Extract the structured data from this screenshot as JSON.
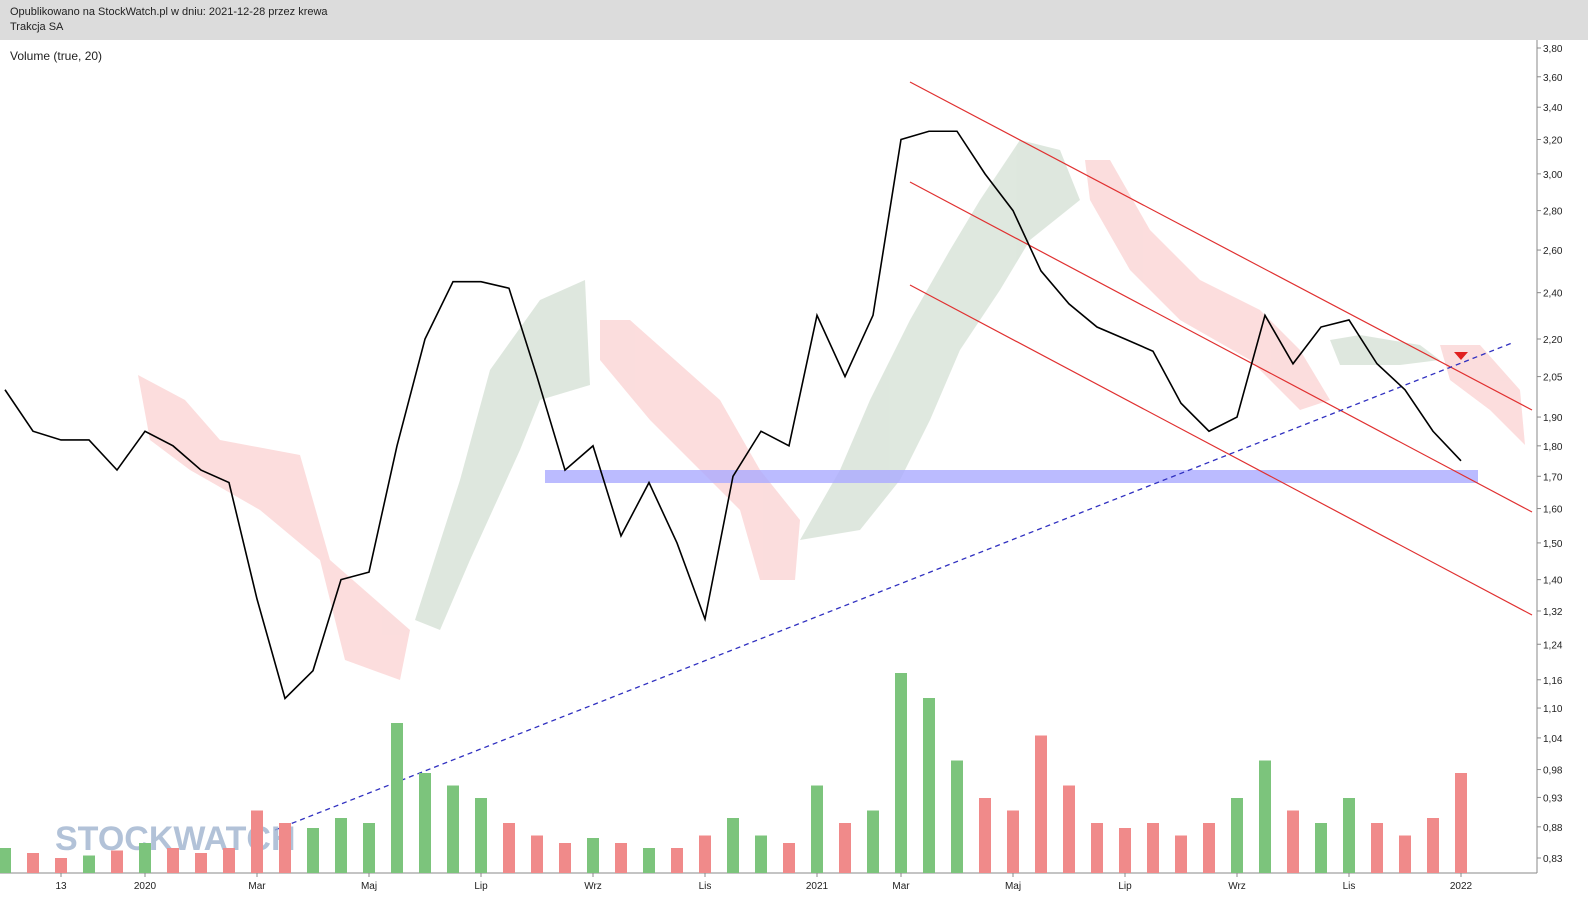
{
  "chart_data": {
    "type": "line",
    "title": "Opublikowano na StockWatch.pl w dniu: 2021-12-28 przez krewa",
    "subtitle": "Trakcja SA",
    "watermark": "STOCKWATCH",
    "categories": [
      null,
      null,
      "13",
      null,
      null,
      "2020",
      null,
      null,
      null,
      "Mar",
      null,
      null,
      null,
      "Maj",
      null,
      null,
      null,
      "Lip",
      null,
      null,
      null,
      "Wrz",
      null,
      null,
      null,
      "Lis",
      null,
      null,
      null,
      "2021",
      null,
      null,
      "Mar",
      null,
      null,
      null,
      "Maj",
      null,
      null,
      null,
      "Lip",
      null,
      null,
      null,
      "Wrz",
      null,
      null,
      null,
      "Lis",
      null,
      null,
      null,
      "2022"
    ],
    "series": [
      {
        "color": "#000000",
        "values": [
          2.0,
          1.85,
          1.82,
          1.82,
          1.72,
          1.85,
          1.8,
          1.72,
          1.68,
          1.35,
          1.12,
          1.18,
          1.4,
          1.42,
          1.8,
          2.2,
          2.45,
          2.45,
          2.42,
          2.05,
          1.72,
          1.8,
          1.52,
          1.68,
          1.5,
          1.3,
          1.7,
          1.85,
          1.8,
          2.3,
          2.05,
          2.3,
          3.2,
          3.25,
          3.25,
          3.0,
          2.8,
          2.5,
          2.35,
          2.25,
          2.2,
          2.15,
          1.95,
          1.85,
          1.9,
          2.3,
          2.1,
          2.25,
          2.28,
          2.1,
          2.0,
          1.85,
          1.75
        ]
      }
    ],
    "volume": {
      "name": "Volume (true, 20)",
      "up_color": "#7cc47c",
      "down_color": "#f08a8a",
      "values": [
        10,
        8,
        6,
        7,
        9,
        12,
        10,
        8,
        10,
        25,
        20,
        18,
        22,
        20,
        60,
        40,
        35,
        30,
        20,
        15,
        12,
        14,
        12,
        10,
        10,
        15,
        22,
        15,
        12,
        35,
        20,
        25,
        80,
        70,
        45,
        30,
        25,
        55,
        35,
        20,
        18,
        20,
        15,
        20,
        30,
        45,
        25,
        20,
        30,
        20,
        15,
        22,
        40
      ]
    },
    "log_scale": true,
    "ylim": [
      0.83,
      3.8
    ],
    "yticks": [
      {
        "value": 3.8,
        "label": "3,80"
      },
      {
        "value": 3.6,
        "label": "3,60"
      },
      {
        "value": 3.4,
        "label": "3,40"
      },
      {
        "value": 3.2,
        "label": "3,20"
      },
      {
        "value": 3.0,
        "label": "3,00"
      },
      {
        "value": 2.8,
        "label": "2,80"
      },
      {
        "value": 2.6,
        "label": "2,60"
      },
      {
        "value": 2.4,
        "label": "2,40"
      },
      {
        "value": 2.2,
        "label": "2,20"
      },
      {
        "value": 2.05,
        "label": "2,05"
      },
      {
        "value": 1.9,
        "label": "1,90"
      },
      {
        "value": 1.8,
        "label": "1,80"
      },
      {
        "value": 1.7,
        "label": "1,70"
      },
      {
        "value": 1.6,
        "label": "1,60"
      },
      {
        "value": 1.5,
        "label": "1,50"
      },
      {
        "value": 1.4,
        "label": "1,40"
      },
      {
        "value": 1.32,
        "label": "1,32"
      },
      {
        "value": 1.24,
        "label": "1,24"
      },
      {
        "value": 1.16,
        "label": "1,16"
      },
      {
        "value": 1.1,
        "label": "1,10"
      },
      {
        "value": 1.04,
        "label": "1,04"
      },
      {
        "value": 0.98,
        "label": "0,98"
      },
      {
        "value": 0.93,
        "label": "0,93"
      },
      {
        "value": 0.88,
        "label": "0,88"
      },
      {
        "value": 0.83,
        "label": "0,83"
      }
    ]
  }
}
